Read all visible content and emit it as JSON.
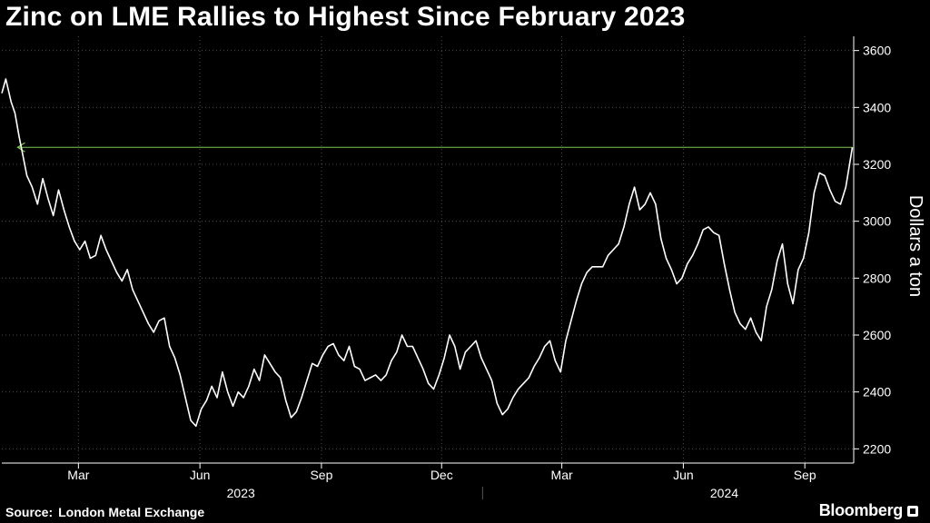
{
  "title": "Zinc on LME Rallies to Highest Since February 2023",
  "source": {
    "label": "Source:",
    "name": "London Metal Exchange"
  },
  "brand": "Bloomberg",
  "colors": {
    "background": "#000000",
    "line": "#ffffff",
    "grid": "#4d4d4d",
    "marker": "#7ec850"
  },
  "chart_data": {
    "type": "line",
    "title": "Zinc on LME Rallies to Highest Since February 2023",
    "xlabel": "",
    "ylabel": "Dollars a ton",
    "y_axis_position": "right",
    "ylim": [
      2150,
      3650
    ],
    "yticks": [
      2200,
      2400,
      2600,
      2800,
      3000,
      3200,
      3400,
      3600
    ],
    "xlim": [
      "2023-01-02",
      "2024-10-08"
    ],
    "xticks": [
      {
        "date": "2023-03-01",
        "label": "Mar"
      },
      {
        "date": "2023-06-01",
        "label": "Jun"
      },
      {
        "date": "2023-09-01",
        "label": "Sep"
      },
      {
        "date": "2023-12-01",
        "label": "Dec"
      },
      {
        "date": "2024-03-01",
        "label": "Mar"
      },
      {
        "date": "2024-06-01",
        "label": "Jun"
      },
      {
        "date": "2024-09-01",
        "label": "Sep"
      }
    ],
    "years": [
      {
        "label": "2023",
        "center": "2023-07-02"
      },
      {
        "label": "2024",
        "center": "2024-07-02"
      }
    ],
    "year_divider": "2024-01-01",
    "grid": "dotted-vertical-and-horizontal",
    "reference_arrow": {
      "y": 3260,
      "from": "2024-10-07",
      "to": "2023-01-14",
      "note": "points back to February 2023 high"
    },
    "series": [
      {
        "name": "",
        "x": [
          "2023-01-02",
          "2023-01-05",
          "2023-01-09",
          "2023-01-12",
          "2023-01-15",
          "2023-01-18",
          "2023-01-21",
          "2023-01-25",
          "2023-01-29",
          "2023-02-02",
          "2023-02-06",
          "2023-02-10",
          "2023-02-14",
          "2023-02-18",
          "2023-02-22",
          "2023-02-26",
          "2023-03-02",
          "2023-03-06",
          "2023-03-10",
          "2023-03-14",
          "2023-03-18",
          "2023-03-22",
          "2023-03-26",
          "2023-03-30",
          "2023-04-03",
          "2023-04-07",
          "2023-04-11",
          "2023-04-15",
          "2023-04-19",
          "2023-04-23",
          "2023-04-27",
          "2023-05-01",
          "2023-05-05",
          "2023-05-09",
          "2023-05-13",
          "2023-05-17",
          "2023-05-21",
          "2023-05-25",
          "2023-05-29",
          "2023-06-02",
          "2023-06-06",
          "2023-06-10",
          "2023-06-14",
          "2023-06-18",
          "2023-06-22",
          "2023-06-26",
          "2023-06-30",
          "2023-07-04",
          "2023-07-08",
          "2023-07-12",
          "2023-07-16",
          "2023-07-20",
          "2023-07-24",
          "2023-07-28",
          "2023-08-01",
          "2023-08-05",
          "2023-08-09",
          "2023-08-13",
          "2023-08-17",
          "2023-08-21",
          "2023-08-25",
          "2023-08-29",
          "2023-09-02",
          "2023-09-06",
          "2023-09-10",
          "2023-09-14",
          "2023-09-18",
          "2023-09-22",
          "2023-09-26",
          "2023-09-30",
          "2023-10-04",
          "2023-10-08",
          "2023-10-12",
          "2023-10-16",
          "2023-10-20",
          "2023-10-24",
          "2023-10-28",
          "2023-11-01",
          "2023-11-05",
          "2023-11-09",
          "2023-11-13",
          "2023-11-17",
          "2023-11-21",
          "2023-11-25",
          "2023-11-29",
          "2023-12-03",
          "2023-12-07",
          "2023-12-11",
          "2023-12-15",
          "2023-12-19",
          "2023-12-23",
          "2023-12-27",
          "2023-12-31",
          "2024-01-04",
          "2024-01-08",
          "2024-01-12",
          "2024-01-16",
          "2024-01-20",
          "2024-01-24",
          "2024-01-28",
          "2024-02-01",
          "2024-02-05",
          "2024-02-09",
          "2024-02-13",
          "2024-02-17",
          "2024-02-21",
          "2024-02-25",
          "2024-02-29",
          "2024-03-04",
          "2024-03-08",
          "2024-03-12",
          "2024-03-16",
          "2024-03-20",
          "2024-03-24",
          "2024-03-28",
          "2024-04-01",
          "2024-04-05",
          "2024-04-09",
          "2024-04-13",
          "2024-04-17",
          "2024-04-21",
          "2024-04-25",
          "2024-04-29",
          "2024-05-03",
          "2024-05-07",
          "2024-05-11",
          "2024-05-15",
          "2024-05-19",
          "2024-05-23",
          "2024-05-27",
          "2024-05-31",
          "2024-06-04",
          "2024-06-08",
          "2024-06-12",
          "2024-06-16",
          "2024-06-20",
          "2024-06-24",
          "2024-06-28",
          "2024-07-02",
          "2024-07-06",
          "2024-07-10",
          "2024-07-14",
          "2024-07-18",
          "2024-07-22",
          "2024-07-26",
          "2024-07-30",
          "2024-08-03",
          "2024-08-07",
          "2024-08-11",
          "2024-08-15",
          "2024-08-19",
          "2024-08-23",
          "2024-08-27",
          "2024-08-31",
          "2024-09-04",
          "2024-09-08",
          "2024-09-12",
          "2024-09-16",
          "2024-09-20",
          "2024-09-24",
          "2024-09-28",
          "2024-10-02",
          "2024-10-07"
        ],
        "y": [
          3450,
          3500,
          3420,
          3380,
          3300,
          3230,
          3160,
          3120,
          3060,
          3150,
          3080,
          3020,
          3110,
          3040,
          2980,
          2930,
          2900,
          2930,
          2870,
          2880,
          2950,
          2900,
          2860,
          2820,
          2790,
          2830,
          2760,
          2720,
          2680,
          2640,
          2610,
          2650,
          2660,
          2560,
          2520,
          2460,
          2380,
          2300,
          2280,
          2340,
          2370,
          2420,
          2380,
          2470,
          2400,
          2350,
          2400,
          2380,
          2420,
          2480,
          2440,
          2530,
          2500,
          2470,
          2450,
          2370,
          2310,
          2330,
          2380,
          2440,
          2500,
          2490,
          2530,
          2560,
          2570,
          2530,
          2510,
          2560,
          2490,
          2480,
          2440,
          2450,
          2460,
          2440,
          2460,
          2510,
          2540,
          2600,
          2560,
          2560,
          2520,
          2480,
          2430,
          2410,
          2460,
          2520,
          2600,
          2560,
          2480,
          2540,
          2560,
          2580,
          2520,
          2480,
          2440,
          2360,
          2320,
          2340,
          2380,
          2410,
          2430,
          2450,
          2490,
          2520,
          2560,
          2580,
          2510,
          2470,
          2580,
          2650,
          2720,
          2780,
          2820,
          2840,
          2840,
          2840,
          2880,
          2900,
          2920,
          2980,
          3060,
          3120,
          3040,
          3060,
          3100,
          3060,
          2940,
          2870,
          2830,
          2780,
          2800,
          2850,
          2880,
          2920,
          2970,
          2980,
          2960,
          2950,
          2850,
          2760,
          2680,
          2640,
          2620,
          2660,
          2610,
          2580,
          2700,
          2760,
          2860,
          2920,
          2780,
          2710,
          2830,
          2870,
          2960,
          3100,
          3170,
          3160,
          3110,
          3070,
          3060,
          3120,
          3260
        ]
      }
    ]
  }
}
